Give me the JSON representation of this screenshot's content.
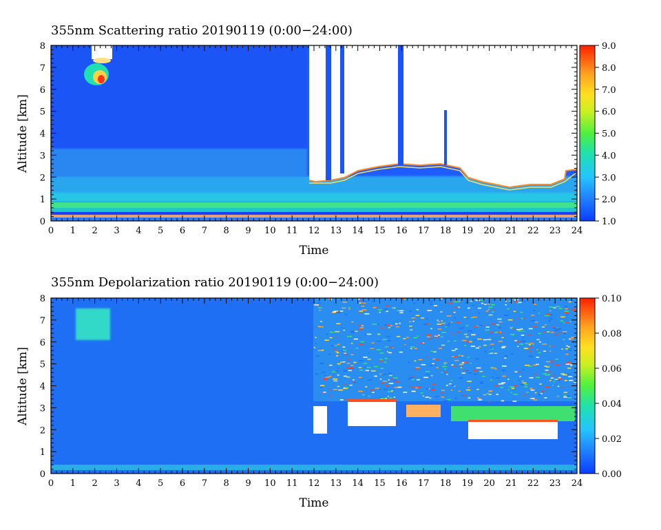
{
  "chart_data": [
    {
      "type": "heatmap",
      "title": "355nm Scattering ratio  20190119 (0:00−24:00)",
      "xlabel": "Time",
      "ylabel": "Altitude [km]",
      "xlim": [
        0,
        24
      ],
      "ylim": [
        0,
        8
      ],
      "x_ticks": [
        "0",
        "1",
        "2",
        "3",
        "4",
        "5",
        "6",
        "7",
        "8",
        "9",
        "10",
        "11",
        "12",
        "13",
        "14",
        "15",
        "16",
        "17",
        "18",
        "19",
        "20",
        "21",
        "22",
        "23",
        "24"
      ],
      "y_ticks": [
        "0",
        "1",
        "2",
        "3",
        "4",
        "5",
        "6",
        "7",
        "8"
      ],
      "colorbar": {
        "min": 1.0,
        "max": 9.0,
        "ticks": [
          "1.0",
          "2.0",
          "3.0",
          "4.0",
          "5.0",
          "6.0",
          "7.0",
          "8.0",
          "9.0"
        ]
      }
    },
    {
      "type": "heatmap",
      "title": "355nm Depolarization ratio  20190119 (0:00−24:00)",
      "xlabel": "Time",
      "ylabel": "Altitude [km]",
      "xlim": [
        0,
        24
      ],
      "ylim": [
        0,
        8
      ],
      "x_ticks": [
        "0",
        "1",
        "2",
        "3",
        "4",
        "5",
        "6",
        "7",
        "8",
        "9",
        "10",
        "11",
        "12",
        "13",
        "14",
        "15",
        "16",
        "17",
        "18",
        "19",
        "20",
        "21",
        "22",
        "23",
        "24"
      ],
      "y_ticks": [
        "0",
        "1",
        "2",
        "3",
        "4",
        "5",
        "6",
        "7",
        "8"
      ],
      "colorbar": {
        "min": 0.0,
        "max": 0.1,
        "ticks": [
          "0.00",
          "0.02",
          "0.04",
          "0.06",
          "0.08",
          "0.10"
        ]
      }
    }
  ]
}
